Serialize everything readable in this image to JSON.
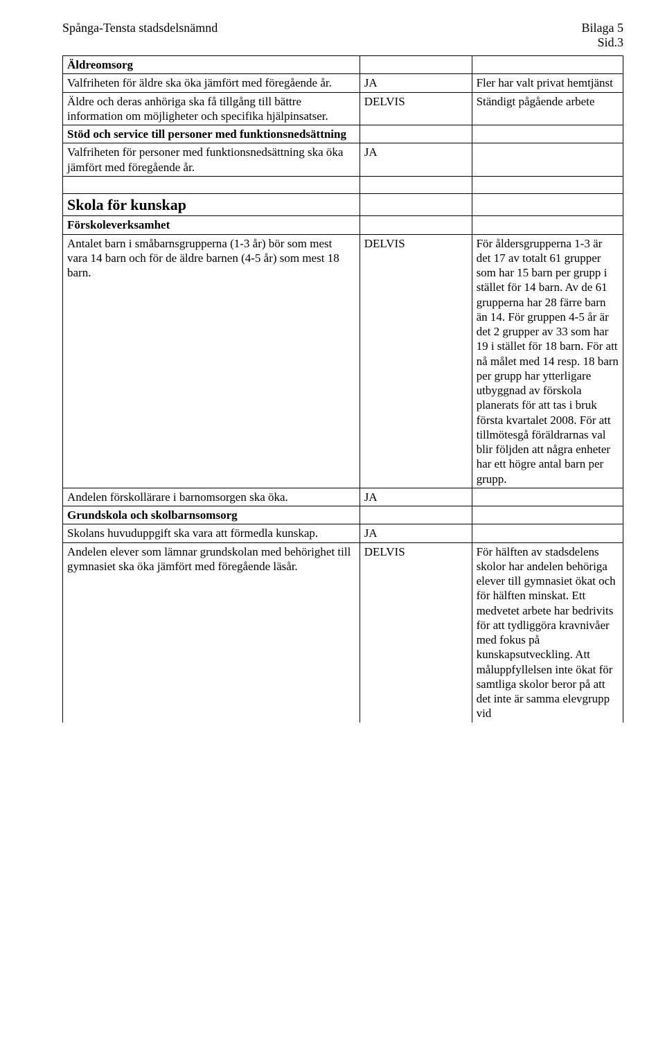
{
  "header": {
    "left": "Spånga-Tensta stadsdelsnämnd",
    "right1": "Bilaga 5",
    "right2": "Sid.3"
  },
  "rows": [
    {
      "c1": "Äldreomsorg",
      "c1Bold": true,
      "c2": "",
      "c3": ""
    },
    {
      "c1": "Valfriheten för äldre ska öka jämfört med föregående år.",
      "c2": "JA",
      "c3": "Fler har valt privat hemtjänst"
    },
    {
      "c1": "Äldre och deras anhöriga ska få tillgång till bättre information om möjligheter och specifika hjälpinsatser.",
      "c2": "DELVIS",
      "c3": "Ständigt pågående arbete"
    },
    {
      "c1": "Stöd och service till personer med funktionsnedsättning",
      "c1Bold": true,
      "c2": "",
      "c3": ""
    },
    {
      "c1": "Valfriheten för personer med funktionsnedsättning ska öka jämfört med föregående år.",
      "c2": "JA",
      "c3": ""
    },
    {
      "c1": "",
      "c2": "",
      "c3": "",
      "short": true
    },
    {
      "c1": "Skola för kunskap",
      "c1Section": true,
      "c2": "",
      "c3": ""
    },
    {
      "c1": "Förskoleverksamhet",
      "c1Bold": true,
      "c2": "",
      "c3": ""
    },
    {
      "c1": "Antalet barn i småbarnsgrupperna (1-3 år) bör som mest vara 14 barn och för de äldre barnen (4-5 år) som mest 18 barn.",
      "c2": "DELVIS",
      "c3": "För åldersgrupperna 1-3 är det 17 av totalt 61 grupper som har 15 barn per grupp i stället för 14 barn. Av de 61 grupperna har 28 färre barn än 14. För gruppen 4-5 år är det 2 grupper av 33 som har 19 i stället för 18 barn. För att nå målet med 14 resp. 18 barn per grupp har ytterligare utbyggnad av förskola planerats för att tas i bruk första kvartalet 2008. För att tillmötesgå föräldrarnas val blir följden att några enheter har ett högre antal barn per grupp."
    },
    {
      "c1": "Andelen förskollärare i barnomsorgen ska öka.",
      "c2": "JA",
      "c3": ""
    },
    {
      "c1": "Grundskola och skolbarnsomsorg",
      "c1Bold": true,
      "c2": "",
      "c3": ""
    },
    {
      "c1": "Skolans huvuduppgift ska vara att förmedla kunskap.",
      "c2": "JA",
      "c3": ""
    },
    {
      "c1": "Andelen elever som lämnar grundskolan med behörighet till gymnasiet ska öka jämfört med föregående läsår.",
      "c2": "DELVIS",
      "c3": "För hälften av stadsdelens skolor har andelen behöriga elever till gymnasiet ökat och för hälften minskat. Ett medvetet arbete har bedrivits för att tydliggöra kravnivåer med fokus på kunskapsutveckling. Att måluppfyllelsen inte ökat för samtliga skolor beror på att det inte är samma elevgrupp vid",
      "lastRowNoBottom": true
    }
  ]
}
